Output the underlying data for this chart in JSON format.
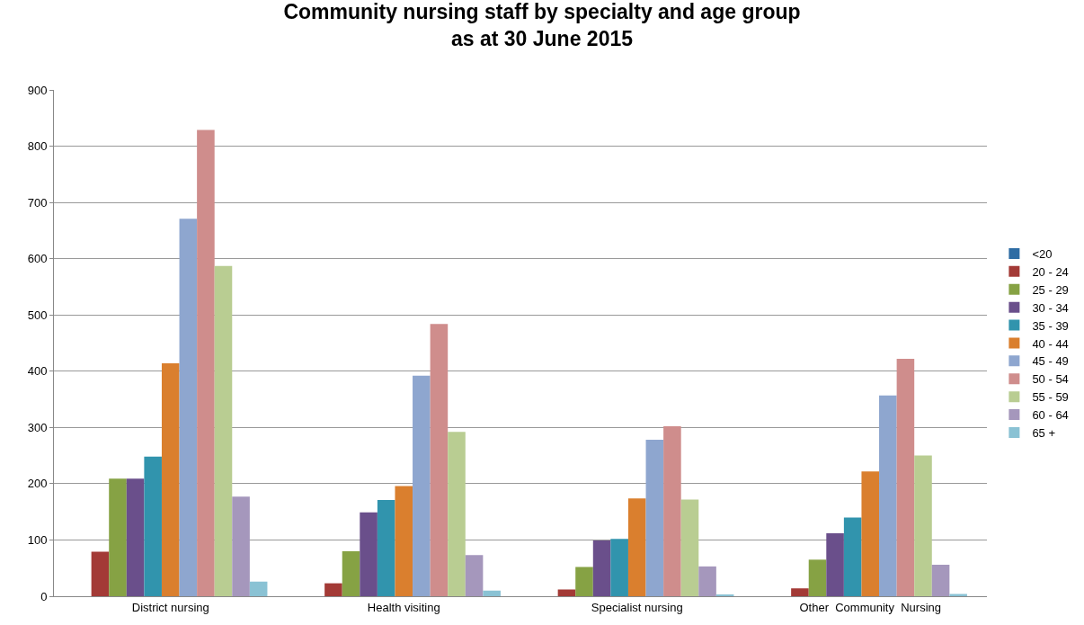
{
  "chart_data": {
    "type": "bar",
    "title": "Community nursing staff by specialty and age group\nas at 30 June 2015",
    "categories": [
      "District nursing",
      "Health visiting",
      "Specialist nursing",
      "Other  Community  Nursing"
    ],
    "series": [
      {
        "name": "<20",
        "color": "#2e6ca4",
        "values": [
          0,
          0,
          0,
          0
        ]
      },
      {
        "name": "20 - 24",
        "color": "#a33a36",
        "values": [
          79,
          23,
          12,
          14
        ]
      },
      {
        "name": "25 - 29",
        "color": "#86a244",
        "values": [
          209,
          80,
          52,
          65
        ]
      },
      {
        "name": "30 - 34",
        "color": "#6a4f8b",
        "values": [
          209,
          149,
          99,
          112
        ]
      },
      {
        "name": "35 - 39",
        "color": "#3194ad",
        "values": [
          248,
          171,
          102,
          140
        ]
      },
      {
        "name": "40 - 44",
        "color": "#da7f2e",
        "values": [
          414,
          196,
          174,
          222
        ]
      },
      {
        "name": "45 - 49",
        "color": "#8ea6cf",
        "values": [
          671,
          392,
          278,
          357
        ]
      },
      {
        "name": "50 - 54",
        "color": "#cf8d8c",
        "values": [
          829,
          484,
          302,
          422
        ]
      },
      {
        "name": "55 - 59",
        "color": "#b9cd92",
        "values": [
          587,
          292,
          172,
          250
        ]
      },
      {
        "name": "60 - 64",
        "color": "#a597bc",
        "values": [
          177,
          73,
          53,
          56
        ]
      },
      {
        "name": "65 +",
        "color": "#8ac2d4",
        "values": [
          26,
          10,
          3,
          4
        ]
      }
    ],
    "ylim": [
      0,
      900
    ],
    "yticks": [
      0,
      100,
      200,
      300,
      400,
      500,
      600,
      700,
      800,
      900
    ],
    "grid": "y",
    "legend": "right"
  }
}
